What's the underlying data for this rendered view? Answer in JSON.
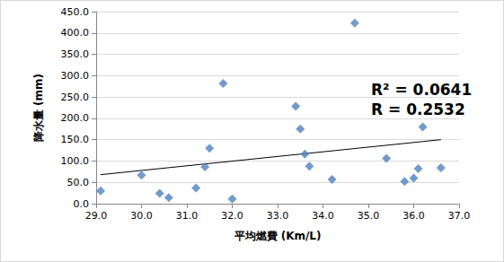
{
  "chart_data": {
    "type": "scatter",
    "x_label": "平均燃費 (Km/L)",
    "y_label": "降水量 (mm)",
    "annotations": [
      "R² = 0.0641",
      "R = 0.2532"
    ],
    "xlim": [
      29,
      37
    ],
    "xticks": [
      {
        "value": 29,
        "label": "29.0"
      },
      {
        "value": 30,
        "label": "30.0"
      },
      {
        "value": 31,
        "label": "31.0"
      },
      {
        "value": 32,
        "label": "32.0"
      },
      {
        "value": 33,
        "label": "33.0"
      },
      {
        "value": 34,
        "label": "34.0"
      },
      {
        "value": 35,
        "label": "35.0"
      },
      {
        "value": 36,
        "label": "36.0"
      },
      {
        "value": 37,
        "label": "37.0"
      }
    ],
    "ylim": [
      0,
      450
    ],
    "yticks": [
      {
        "value": 0,
        "label": "0.0"
      },
      {
        "value": 50,
        "label": "50.0"
      },
      {
        "value": 100,
        "label": "100.0"
      },
      {
        "value": 150,
        "label": "150.0"
      },
      {
        "value": 200,
        "label": "200.0"
      },
      {
        "value": 250,
        "label": "250.0"
      },
      {
        "value": 300,
        "label": "300.0"
      },
      {
        "value": 350,
        "label": "350.0"
      },
      {
        "value": 400,
        "label": "400.0"
      },
      {
        "value": 450,
        "label": "450.0"
      }
    ],
    "grid": true,
    "series": [
      {
        "type": "scatter",
        "color": "#4f81bd",
        "marker": "diamond",
        "x": [
          29.1,
          30.0,
          30.4,
          30.6,
          31.2,
          31.4,
          31.5,
          31.8,
          32.0,
          33.4,
          33.5,
          33.6,
          33.7,
          34.2,
          34.7,
          35.4,
          35.8,
          36.0,
          36.1,
          36.2,
          36.6
        ],
        "values": [
          30,
          67,
          24,
          14,
          37,
          86,
          130,
          282,
          11,
          228,
          175,
          116,
          88,
          57,
          423,
          106,
          52,
          60,
          82,
          180,
          84
        ]
      },
      {
        "type": "line",
        "color": "#000000",
        "line_style": "solid",
        "x": [
          29.1,
          36.6
        ],
        "values": [
          68,
          150
        ]
      }
    ]
  }
}
